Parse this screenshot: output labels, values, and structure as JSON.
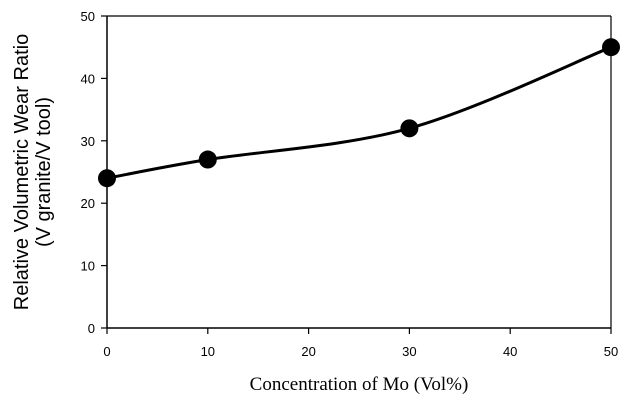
{
  "chart_data": {
    "type": "line",
    "title": "",
    "xlabel": "Concentration of Mo (Vol%)",
    "ylabel_line1": "Relative Volumetric Wear Ratio",
    "ylabel_line2": "(V granite/V tool)",
    "x": [
      0,
      10,
      30,
      50
    ],
    "series": [
      {
        "values": [
          24,
          27,
          32,
          45
        ],
        "color": "#000000",
        "marker": "filled-circle",
        "line": "smooth"
      }
    ],
    "xlim": [
      0,
      50
    ],
    "ylim": [
      0,
      50
    ],
    "x_ticks": [
      0,
      10,
      20,
      30,
      40,
      50
    ],
    "y_ticks": [
      0,
      10,
      20,
      30,
      40,
      50
    ],
    "x_tick_labels": [
      "0",
      "10",
      "20",
      "30",
      "40",
      "50"
    ],
    "y_tick_labels": [
      "0",
      "10",
      "20",
      "30",
      "40",
      "50"
    ],
    "grid": false,
    "legend": "none"
  }
}
